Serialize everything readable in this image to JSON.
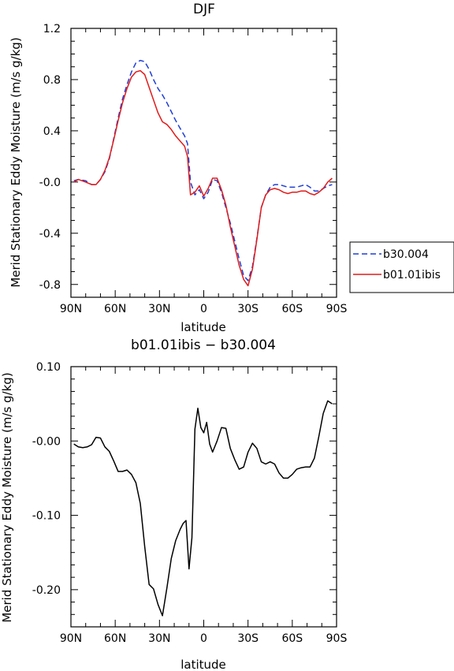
{
  "chart_data": [
    {
      "type": "line",
      "title": "DJF",
      "xlabel": "latitude",
      "ylabel": "Merid Stationary Eddy Moisture (m/s g/kg)",
      "xlim": [
        90,
        -90
      ],
      "ylim": [
        -0.9,
        1.2
      ],
      "x_ticks": [
        {
          "value": 90,
          "label": "90N"
        },
        {
          "value": 60,
          "label": "60N"
        },
        {
          "value": 30,
          "label": "30N"
        },
        {
          "value": 0,
          "label": "0"
        },
        {
          "value": -30,
          "label": "30S"
        },
        {
          "value": -60,
          "label": "60S"
        },
        {
          "value": -90,
          "label": "90S"
        }
      ],
      "y_ticks": [
        {
          "value": 1.2,
          "label": "1.2"
        },
        {
          "value": 0.8,
          "label": "0.8"
        },
        {
          "value": 0.4,
          "label": "0.4"
        },
        {
          "value": 0.0,
          "label": "-0.0"
        },
        {
          "value": -0.4,
          "label": "-0.4"
        },
        {
          "value": -0.8,
          "label": "-0.8"
        }
      ],
      "legend": {
        "placement": "right",
        "entries": [
          {
            "name": "b30.004",
            "color": "#1f3fd6",
            "dash": "dashed"
          },
          {
            "name": "b01.01ibis",
            "color": "#e01b1b",
            "dash": "solid"
          }
        ]
      },
      "series": [
        {
          "name": "b30.004",
          "color": "#1f3fd6",
          "dash": "dashed",
          "x": [
            88,
            85,
            80,
            76,
            73,
            70,
            67,
            64,
            61,
            58,
            55,
            52,
            49,
            46,
            43,
            40,
            37,
            34,
            31,
            28,
            25,
            22,
            19,
            16,
            13,
            11,
            9,
            6,
            3,
            0,
            -3,
            -6,
            -9,
            -12,
            -15,
            -18,
            -21,
            -24,
            -27,
            -30,
            -33,
            -36,
            -39,
            -42,
            -45,
            -48,
            -51,
            -54,
            -57,
            -60,
            -63,
            -66,
            -69,
            -72,
            -75,
            -78,
            -81,
            -84,
            -87
          ],
          "y": [
            0.01,
            0.02,
            0.01,
            -0.02,
            -0.02,
            0.02,
            0.08,
            0.18,
            0.34,
            0.5,
            0.65,
            0.76,
            0.86,
            0.93,
            0.95,
            0.94,
            0.88,
            0.8,
            0.73,
            0.68,
            0.62,
            0.55,
            0.48,
            0.42,
            0.36,
            0.3,
            0.0,
            -0.1,
            -0.06,
            -0.13,
            -0.08,
            0.02,
            0.01,
            -0.08,
            -0.2,
            -0.32,
            -0.46,
            -0.6,
            -0.73,
            -0.77,
            -0.66,
            -0.44,
            -0.2,
            -0.1,
            -0.04,
            -0.02,
            -0.02,
            -0.03,
            -0.04,
            -0.04,
            -0.04,
            -0.03,
            -0.02,
            -0.04,
            -0.07,
            -0.07,
            -0.05,
            -0.03,
            -0.02
          ]
        },
        {
          "name": "b01.01ibis",
          "color": "#e01b1b",
          "dash": "solid",
          "x": [
            88,
            85,
            80,
            76,
            73,
            70,
            67,
            64,
            61,
            58,
            55,
            52,
            49,
            46,
            43,
            40,
            37,
            34,
            31,
            28,
            25,
            22,
            19,
            16,
            13,
            11,
            9,
            6,
            3,
            0,
            -3,
            -6,
            -9,
            -12,
            -15,
            -18,
            -21,
            -24,
            -27,
            -30,
            -33,
            -36,
            -39,
            -42,
            -45,
            -48,
            -51,
            -54,
            -57,
            -60,
            -63,
            -66,
            -69,
            -72,
            -75,
            -78,
            -81,
            -84,
            -87
          ],
          "y": [
            0.0,
            0.02,
            0.0,
            -0.02,
            -0.02,
            0.02,
            0.09,
            0.19,
            0.33,
            0.48,
            0.62,
            0.73,
            0.82,
            0.86,
            0.87,
            0.84,
            0.74,
            0.64,
            0.54,
            0.47,
            0.45,
            0.41,
            0.36,
            0.32,
            0.28,
            0.2,
            -0.1,
            -0.08,
            -0.03,
            -0.11,
            -0.05,
            0.03,
            0.03,
            -0.06,
            -0.18,
            -0.35,
            -0.5,
            -0.65,
            -0.76,
            -0.81,
            -0.68,
            -0.45,
            -0.2,
            -0.1,
            -0.06,
            -0.05,
            -0.06,
            -0.08,
            -0.09,
            -0.08,
            -0.08,
            -0.07,
            -0.07,
            -0.09,
            -0.1,
            -0.08,
            -0.05,
            0.0,
            0.03
          ]
        }
      ]
    },
    {
      "type": "line",
      "title": "b01.01ibis − b30.004",
      "xlabel": "latitude",
      "ylabel": "Merid Stationary Eddy Moisture (m/s g/kg)",
      "xlim": [
        90,
        -90
      ],
      "ylim": [
        -0.25,
        0.1
      ],
      "x_ticks": [
        {
          "value": 90,
          "label": "90N"
        },
        {
          "value": 60,
          "label": "60N"
        },
        {
          "value": 30,
          "label": "30N"
        },
        {
          "value": 0,
          "label": "0"
        },
        {
          "value": -30,
          "label": "30S"
        },
        {
          "value": -60,
          "label": "60S"
        },
        {
          "value": -90,
          "label": "90S"
        }
      ],
      "y_ticks": [
        {
          "value": 0.1,
          "label": "0.10"
        },
        {
          "value": 0.0,
          "label": "-0.00"
        },
        {
          "value": -0.1,
          "label": "-0.10"
        },
        {
          "value": -0.2,
          "label": "-0.20"
        }
      ],
      "series": [
        {
          "color": "#000000",
          "dash": "solid",
          "x": [
            88,
            85,
            82,
            79,
            76,
            73,
            70,
            67,
            64,
            61,
            58,
            55,
            52,
            49,
            46,
            43,
            40,
            37,
            34,
            31,
            28,
            25,
            22,
            19,
            16,
            14,
            12,
            10,
            8,
            6,
            4,
            2,
            0,
            -2,
            -4,
            -6,
            -9,
            -12,
            -15,
            -18,
            -21,
            -24,
            -27,
            -30,
            -33,
            -36,
            -39,
            -42,
            -45,
            -48,
            -51,
            -54,
            -57,
            -60,
            -63,
            -66,
            -69,
            -72,
            -75,
            -78,
            -81,
            -84,
            -87
          ],
          "y": [
            -0.004,
            -0.008,
            -0.009,
            -0.008,
            -0.005,
            0.005,
            0.004,
            -0.008,
            -0.014,
            -0.027,
            -0.041,
            -0.041,
            -0.039,
            -0.045,
            -0.056,
            -0.084,
            -0.142,
            -0.193,
            -0.199,
            -0.22,
            -0.235,
            -0.198,
            -0.158,
            -0.134,
            -0.119,
            -0.111,
            -0.107,
            -0.172,
            -0.13,
            0.016,
            0.044,
            0.018,
            0.011,
            0.025,
            -0.004,
            -0.015,
            0.0,
            0.018,
            0.017,
            -0.01,
            -0.025,
            -0.038,
            -0.035,
            -0.015,
            -0.003,
            -0.01,
            -0.028,
            -0.031,
            -0.028,
            -0.031,
            -0.043,
            -0.05,
            -0.05,
            -0.045,
            -0.038,
            -0.036,
            -0.035,
            -0.035,
            -0.023,
            0.006,
            0.037,
            0.054,
            0.05
          ]
        }
      ]
    }
  ]
}
